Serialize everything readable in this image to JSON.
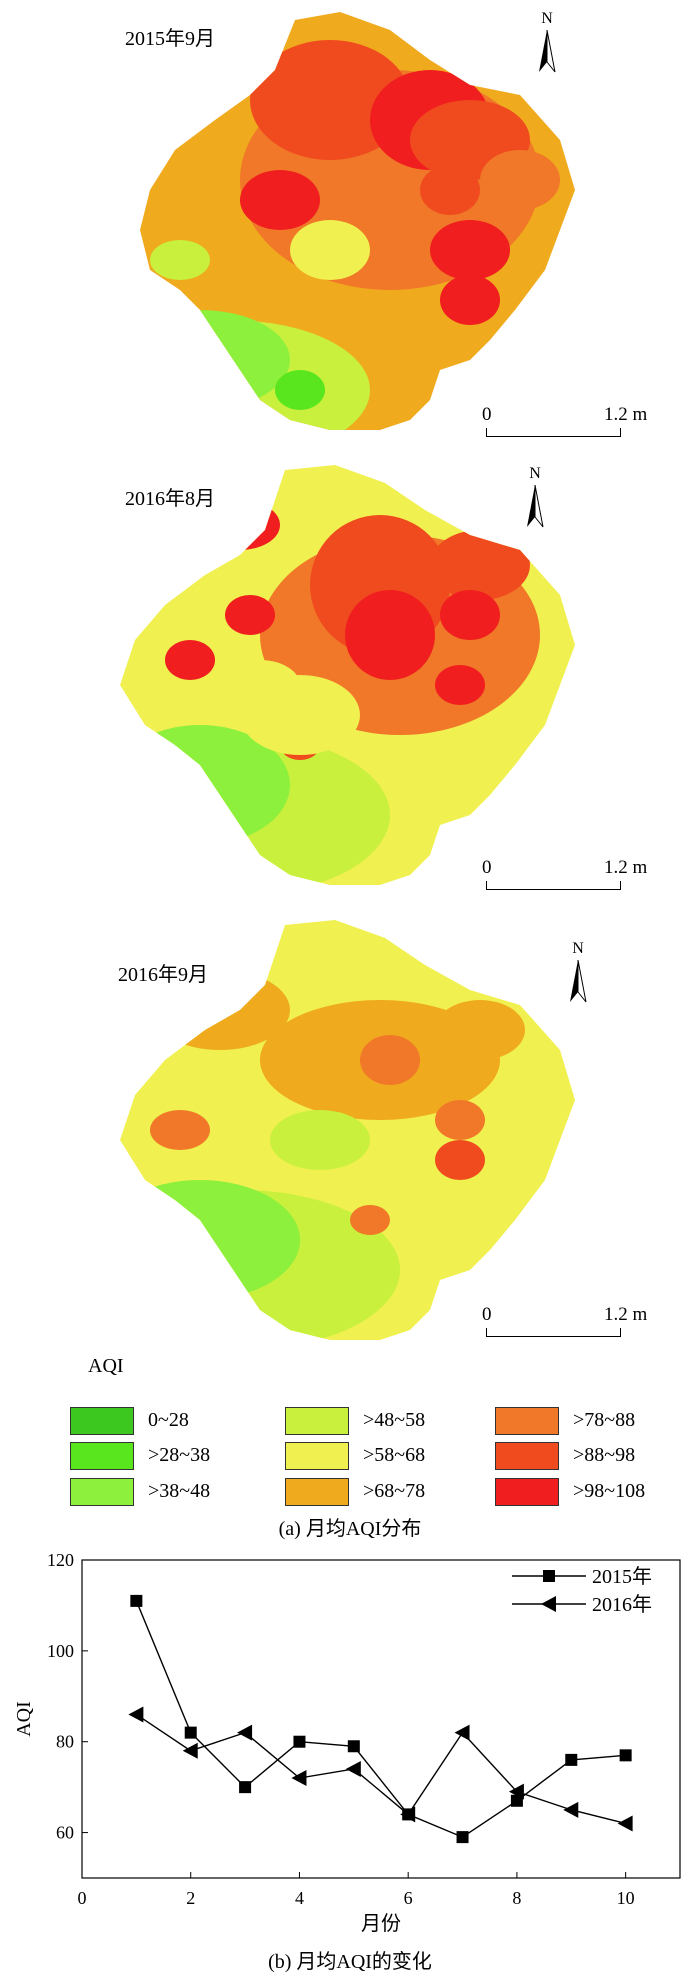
{
  "maps": [
    {
      "title": "2015年9月",
      "north": "N",
      "scale_start": "0",
      "scale_end": "1.2 m",
      "variant": 0
    },
    {
      "title": "2016年8月",
      "north": "N",
      "scale_start": "0",
      "scale_end": "1.2 m",
      "variant": 1
    },
    {
      "title": "2016年9月",
      "north": "N",
      "scale_start": "0",
      "scale_end": "1.2 m",
      "variant": 2
    }
  ],
  "legend": {
    "title": "AQI",
    "items": [
      {
        "label": "0~28",
        "color": "#3cc81e"
      },
      {
        "label": ">28~38",
        "color": "#5ae61e"
      },
      {
        "label": ">38~48",
        "color": "#8cf03c"
      },
      {
        "label": ">48~58",
        "color": "#c8f03c"
      },
      {
        "label": ">58~68",
        "color": "#f0f050"
      },
      {
        "label": ">68~78",
        "color": "#f0aa1e"
      },
      {
        "label": ">78~88",
        "color": "#f07828"
      },
      {
        "label": ">88~98",
        "color": "#f04b1e"
      },
      {
        "label": ">98~108",
        "color": "#f01e1e"
      }
    ]
  },
  "caption_a": "(a) 月均AQI分布",
  "caption_b": "(b) 月均AQI的变化",
  "chart_data": {
    "type": "line",
    "xlabel": "月份",
    "ylabel": "AQI",
    "xlim": [
      0,
      11
    ],
    "ylim": [
      50,
      120
    ],
    "xticks": [
      0,
      2,
      4,
      6,
      8,
      10
    ],
    "yticks": [
      60,
      80,
      100,
      120
    ],
    "grid": false,
    "legend_position": "top-right",
    "series": [
      {
        "name": "2015年",
        "marker": "square",
        "x": [
          1,
          2,
          3,
          4,
          5,
          6,
          7,
          8,
          9,
          10
        ],
        "y": [
          111,
          82,
          70,
          80,
          79,
          64,
          59,
          67,
          76,
          77
        ]
      },
      {
        "name": "2016年",
        "marker": "triangle-left",
        "x": [
          1,
          2,
          3,
          4,
          5,
          6,
          7,
          8,
          9,
          10
        ],
        "y": [
          86,
          78,
          82,
          72,
          74,
          64,
          82,
          69,
          65,
          62
        ]
      }
    ]
  }
}
